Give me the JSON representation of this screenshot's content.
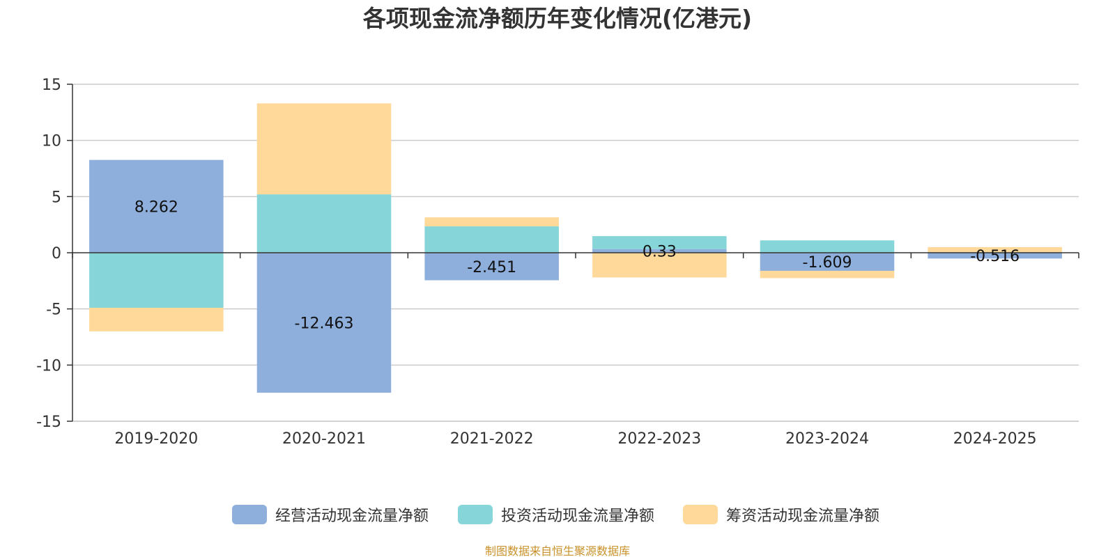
{
  "chart_data": {
    "type": "bar",
    "stacked": true,
    "title": "各项现金流净额历年变化情况(亿港元)",
    "categories": [
      "2019-2020",
      "2020-2021",
      "2021-2022",
      "2022-2023",
      "2023-2024",
      "2024-2025"
    ],
    "ylim": [
      -15,
      15
    ],
    "yticks": [
      15,
      10,
      5,
      0,
      -5,
      -10,
      -15
    ],
    "grid": true,
    "legend_position": "bottom",
    "series": [
      {
        "name": "经营活动现金流量净额",
        "color": "#8eaedb",
        "values": [
          8.262,
          -12.463,
          -2.451,
          0.33,
          -1.609,
          -0.516
        ]
      },
      {
        "name": "投资活动现金流量净额",
        "color": "#86d6d9",
        "values": [
          -4.9,
          5.2,
          2.35,
          1.15,
          1.1,
          0.05
        ]
      },
      {
        "name": "筹资活动现金流量净额",
        "color": "#ffd99a",
        "values": [
          -2.1,
          8.1,
          0.8,
          -2.2,
          -0.65,
          0.45
        ]
      }
    ],
    "data_labels": [
      "8.262",
      "-12.463",
      "-2.451",
      "0.33",
      "-1.609",
      "-0.516"
    ]
  },
  "source": "制图数据来自恒生聚源数据库"
}
